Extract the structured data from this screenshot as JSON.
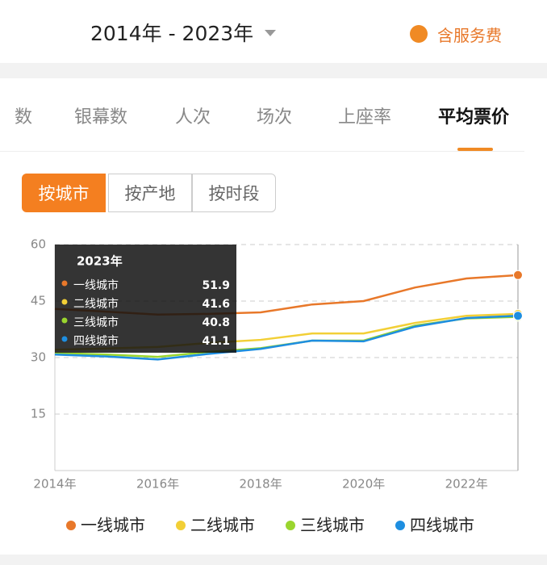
{
  "header": {
    "date_range": "2014年 - 2023年",
    "fee_toggle": "含服务费"
  },
  "tabs": [
    "数",
    "银幕数",
    "人次",
    "场次",
    "上座率",
    "平均票价"
  ],
  "sub_tabs": [
    "按城市",
    "按产地",
    "按时段"
  ],
  "chart_data": {
    "type": "line",
    "categories": [
      "2014年",
      null,
      "2016年",
      null,
      "2018年",
      null,
      "2020年",
      null,
      "2022年",
      "2023年"
    ],
    "ylim": [
      0,
      60
    ],
    "yticks": [
      15,
      30,
      45,
      60
    ],
    "grid": true,
    "legend": "bottom",
    "series": [
      {
        "name": "一线城市",
        "color": "#e8782a",
        "values": [
          42.9,
          42.2,
          41.4,
          41.6,
          42.0,
          44.1,
          45.0,
          48.6,
          51.0,
          51.9
        ]
      },
      {
        "name": "二线城市",
        "color": "#f2cf36",
        "values": [
          32.1,
          32.4,
          32.8,
          33.9,
          34.7,
          36.4,
          36.4,
          39.2,
          41.1,
          41.6
        ]
      },
      {
        "name": "三线城市",
        "color": "#9ad52e",
        "values": [
          31.2,
          30.8,
          30.2,
          31.5,
          32.5,
          34.5,
          34.5,
          38.5,
          40.4,
          40.8
        ]
      },
      {
        "name": "四线城市",
        "color": "#1e8ee0",
        "values": [
          30.8,
          30.3,
          29.5,
          31.0,
          32.3,
          34.5,
          34.3,
          38.2,
          40.5,
          41.1
        ]
      }
    ]
  }
}
